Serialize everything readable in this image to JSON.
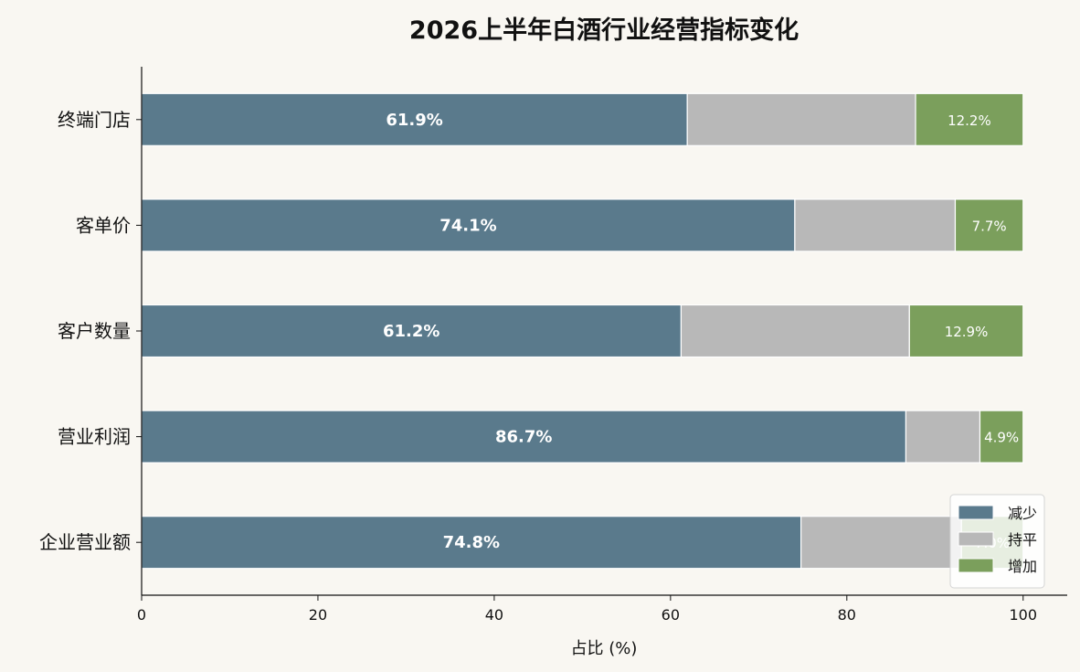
{
  "chart_data": {
    "type": "bar",
    "orientation": "horizontal",
    "stacked": true,
    "title": "2026上半年白酒行业经营指标变化",
    "xlabel": "占比 (%)",
    "ylabel": "",
    "xlim": [
      0,
      105
    ],
    "xticks": [
      0,
      20,
      40,
      60,
      80,
      100
    ],
    "categories": [
      "终端门店",
      "客单价",
      "客户数量",
      "营业利润",
      "企业营业额"
    ],
    "series": [
      {
        "name": "减少",
        "color": "#5a7a8c",
        "values": [
          61.9,
          74.1,
          61.2,
          86.7,
          74.8
        ],
        "labels": [
          "61.9%",
          "74.1%",
          "61.2%",
          "86.7%",
          "74.8%"
        ]
      },
      {
        "name": "持平",
        "color": "#b8b8b8",
        "values": [
          25.9,
          18.2,
          25.9,
          8.4,
          18.2
        ],
        "labels": [
          "",
          "",
          "",
          "",
          ""
        ]
      },
      {
        "name": "增加",
        "color": "#7b9f5c",
        "values": [
          12.2,
          7.7,
          12.9,
          4.9,
          7.0
        ],
        "labels": [
          "12.2%",
          "7.7%",
          "12.9%",
          "4.9%",
          "7.0%"
        ]
      }
    ],
    "legend": {
      "position": "bottom-right"
    },
    "grid": false
  }
}
